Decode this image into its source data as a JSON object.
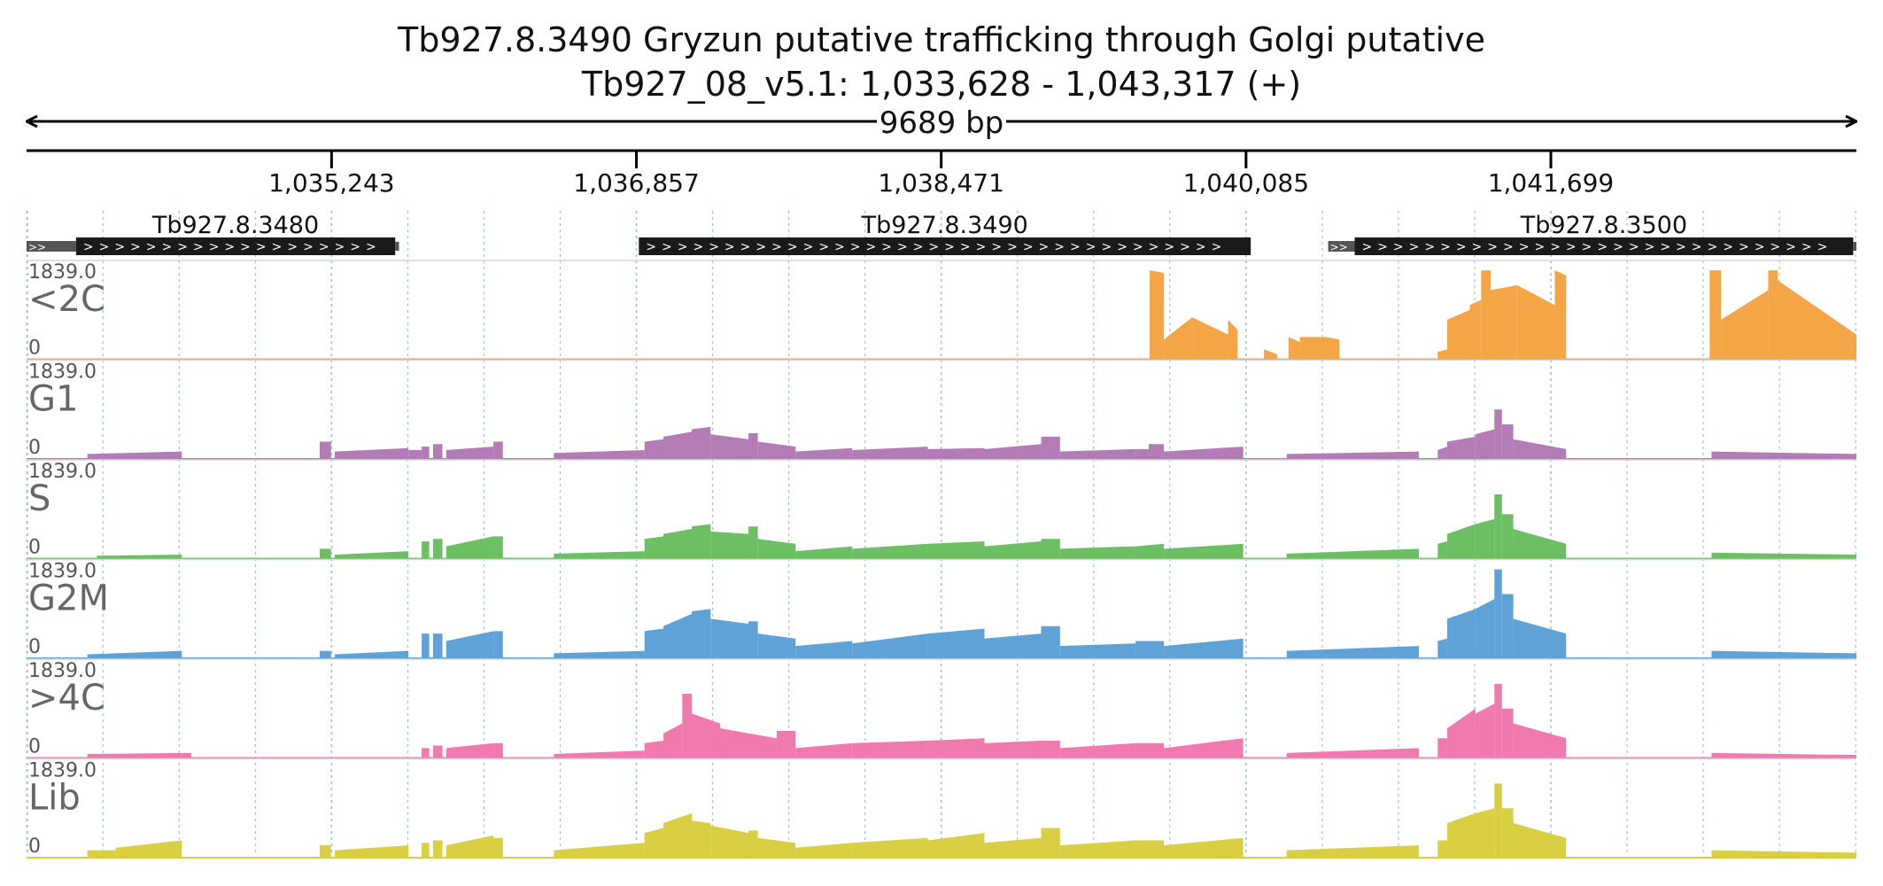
{
  "header": {
    "title": "Tb927.8.3490  Gryzun  putative trafficking through Golgi  putative",
    "locus": "Tb927_08_v5.1: 1,033,628 - 1,043,317 (+)",
    "span_label": "9689 bp"
  },
  "region": {
    "start": 1033628,
    "end": 1043317
  },
  "ruler": {
    "ticks": [
      1035243,
      1036857,
      1038471,
      1040085,
      1041699
    ],
    "tick_labels": [
      "1,035,243",
      "1,036,857",
      "1,038,471",
      "1,040,085",
      "1,041,699"
    ]
  },
  "genes": [
    {
      "name": "Tb927.8.3480",
      "start": 1033890,
      "end": 1035580,
      "utr5_start": 1033628,
      "utr3_end": 1035600,
      "strand": "+"
    },
    {
      "name": "Tb927.8.3490",
      "start": 1036870,
      "end": 1040110,
      "utr5_start": 1036870,
      "utr3_end": 1040110,
      "strand": "+"
    },
    {
      "name": "Tb927.8.3500",
      "start": 1040660,
      "end": 1043300,
      "utr5_start": 1040520,
      "utr3_end": 1043317,
      "strand": "+"
    }
  ],
  "colors": {
    "t2c": "#f4a545",
    "G1": "#b37cb5",
    "S": "#6cbf63",
    "G2M": "#5fa2d8",
    "g4c": "#f07aaf",
    "Lib": "#d9cf43",
    "gene": "#1a1a1a",
    "grid": "#9ec3e6"
  },
  "chart_data": {
    "type": "area",
    "x_unit": "bp",
    "xlim": [
      1033628,
      1043317
    ],
    "ylim": [
      0,
      1839.0
    ],
    "y_max_label": "1839.0",
    "y_min_label": "0",
    "tracks": [
      {
        "name": "<2C",
        "color": "#f4a545",
        "segments": [
          [
            1039575,
            1039650,
            1800,
            1750
          ],
          [
            1039650,
            1039800,
            400,
            850
          ],
          [
            1039800,
            1039990,
            850,
            500
          ],
          [
            1039990,
            1040040,
            800,
            600
          ],
          [
            1040180,
            1040250,
            200,
            100
          ],
          [
            1040310,
            1040370,
            450,
            350
          ],
          [
            1040370,
            1040510,
            450,
            450
          ],
          [
            1040510,
            1040580,
            450,
            400
          ],
          [
            1041100,
            1041150,
            150,
            200
          ],
          [
            1041150,
            1041270,
            800,
            1000
          ],
          [
            1041270,
            1041330,
            1100,
            1200
          ],
          [
            1041330,
            1041380,
            1800,
            1800
          ],
          [
            1041380,
            1041520,
            1400,
            1500
          ],
          [
            1041520,
            1041720,
            1500,
            1100
          ],
          [
            1041720,
            1041780,
            1800,
            1700
          ],
          [
            1042540,
            1042600,
            1800,
            1800
          ],
          [
            1042600,
            1042850,
            800,
            1400
          ],
          [
            1042850,
            1042900,
            1800,
            1800
          ],
          [
            1042900,
            1043317,
            1600,
            500
          ]
        ]
      },
      {
        "name": "G1",
        "color": "#b37cb5",
        "segments": [
          [
            1033950,
            1034450,
            100,
            150
          ],
          [
            1035180,
            1035240,
            350,
            350
          ],
          [
            1035260,
            1035650,
            150,
            220
          ],
          [
            1035650,
            1035720,
            180,
            180
          ],
          [
            1035720,
            1035760,
            250,
            250
          ],
          [
            1035780,
            1035830,
            300,
            300
          ],
          [
            1035850,
            1036100,
            180,
            250
          ],
          [
            1036100,
            1036150,
            350,
            350
          ],
          [
            1036420,
            1036900,
            120,
            180
          ],
          [
            1036900,
            1037000,
            350,
            400
          ],
          [
            1037000,
            1037150,
            450,
            550
          ],
          [
            1037150,
            1037250,
            600,
            650
          ],
          [
            1037250,
            1037450,
            500,
            400
          ],
          [
            1037450,
            1037500,
            520,
            520
          ],
          [
            1037500,
            1037700,
            350,
            250
          ],
          [
            1037700,
            1038000,
            150,
            220
          ],
          [
            1038000,
            1038400,
            180,
            250
          ],
          [
            1038400,
            1038700,
            200,
            220
          ],
          [
            1038700,
            1039000,
            200,
            300
          ],
          [
            1039000,
            1039100,
            450,
            450
          ],
          [
            1039100,
            1039500,
            150,
            200
          ],
          [
            1039500,
            1039570,
            200,
            200
          ],
          [
            1039570,
            1039650,
            300,
            300
          ],
          [
            1039650,
            1040070,
            150,
            250
          ],
          [
            1040300,
            1041000,
            100,
            150
          ],
          [
            1041100,
            1041150,
            180,
            250
          ],
          [
            1041150,
            1041300,
            350,
            450
          ],
          [
            1041300,
            1041400,
            500,
            600
          ],
          [
            1041400,
            1041440,
            1000,
            1000
          ],
          [
            1041440,
            1041500,
            700,
            700
          ],
          [
            1041500,
            1041780,
            400,
            200
          ],
          [
            1042550,
            1043317,
            150,
            100
          ]
        ]
      },
      {
        "name": "S",
        "color": "#6cbf63",
        "segments": [
          [
            1034000,
            1034450,
            60,
            80
          ],
          [
            1035180,
            1035240,
            200,
            200
          ],
          [
            1035260,
            1035650,
            80,
            150
          ],
          [
            1035720,
            1035760,
            350,
            350
          ],
          [
            1035780,
            1035830,
            400,
            400
          ],
          [
            1035850,
            1036100,
            250,
            450
          ],
          [
            1036100,
            1036150,
            450,
            450
          ],
          [
            1036420,
            1036900,
            100,
            150
          ],
          [
            1036900,
            1037000,
            400,
            450
          ],
          [
            1037000,
            1037150,
            500,
            600
          ],
          [
            1037150,
            1037250,
            650,
            700
          ],
          [
            1037250,
            1037450,
            550,
            500
          ],
          [
            1037450,
            1037500,
            650,
            650
          ],
          [
            1037500,
            1037700,
            400,
            300
          ],
          [
            1037700,
            1038000,
            150,
            250
          ],
          [
            1038000,
            1038400,
            200,
            300
          ],
          [
            1038400,
            1038700,
            300,
            350
          ],
          [
            1038700,
            1039000,
            250,
            350
          ],
          [
            1039000,
            1039100,
            400,
            400
          ],
          [
            1039100,
            1039500,
            200,
            250
          ],
          [
            1039500,
            1039650,
            250,
            300
          ],
          [
            1039650,
            1040070,
            200,
            300
          ],
          [
            1040300,
            1041000,
            100,
            200
          ],
          [
            1041100,
            1041150,
            300,
            350
          ],
          [
            1041150,
            1041300,
            500,
            700
          ],
          [
            1041300,
            1041400,
            700,
            800
          ],
          [
            1041400,
            1041440,
            1300,
            1300
          ],
          [
            1041440,
            1041500,
            900,
            900
          ],
          [
            1041500,
            1041780,
            600,
            300
          ],
          [
            1042550,
            1043317,
            120,
            80
          ]
        ]
      },
      {
        "name": "G2M",
        "color": "#5fa2d8",
        "segments": [
          [
            1033950,
            1034450,
            80,
            150
          ],
          [
            1035180,
            1035240,
            150,
            150
          ],
          [
            1035260,
            1035650,
            80,
            150
          ],
          [
            1035720,
            1035760,
            500,
            500
          ],
          [
            1035780,
            1035830,
            500,
            500
          ],
          [
            1035850,
            1036100,
            350,
            550
          ],
          [
            1036100,
            1036150,
            550,
            550
          ],
          [
            1036420,
            1036900,
            100,
            150
          ],
          [
            1036900,
            1037000,
            550,
            600
          ],
          [
            1037000,
            1037150,
            650,
            900
          ],
          [
            1037150,
            1037250,
            950,
            1000
          ],
          [
            1037250,
            1037450,
            800,
            700
          ],
          [
            1037450,
            1037500,
            750,
            750
          ],
          [
            1037500,
            1037700,
            500,
            400
          ],
          [
            1037700,
            1038000,
            250,
            350
          ],
          [
            1038000,
            1038400,
            300,
            500
          ],
          [
            1038400,
            1038700,
            500,
            600
          ],
          [
            1038700,
            1039000,
            400,
            500
          ],
          [
            1039000,
            1039100,
            650,
            650
          ],
          [
            1039100,
            1039500,
            250,
            300
          ],
          [
            1039500,
            1039650,
            350,
            350
          ],
          [
            1039650,
            1040070,
            250,
            400
          ],
          [
            1040300,
            1041000,
            150,
            250
          ],
          [
            1041100,
            1041150,
            350,
            400
          ],
          [
            1041150,
            1041300,
            800,
            1000
          ],
          [
            1041300,
            1041400,
            1000,
            1200
          ],
          [
            1041400,
            1041440,
            1800,
            1800
          ],
          [
            1041440,
            1041500,
            1300,
            1300
          ],
          [
            1041500,
            1041780,
            800,
            500
          ],
          [
            1042550,
            1043317,
            150,
            100
          ]
        ]
      },
      {
        "name": ">4C",
        "color": "#f07aaf",
        "segments": [
          [
            1033950,
            1034450,
            80,
            100
          ],
          [
            1034450,
            1034500,
            100,
            100
          ],
          [
            1035720,
            1035760,
            200,
            200
          ],
          [
            1035780,
            1035830,
            250,
            250
          ],
          [
            1035850,
            1036100,
            200,
            300
          ],
          [
            1036100,
            1036150,
            300,
            300
          ],
          [
            1036420,
            1036900,
            80,
            150
          ],
          [
            1036900,
            1037000,
            300,
            350
          ],
          [
            1037000,
            1037100,
            500,
            700
          ],
          [
            1037100,
            1037150,
            1300,
            1300
          ],
          [
            1037150,
            1037300,
            900,
            700
          ],
          [
            1037300,
            1037600,
            600,
            400
          ],
          [
            1037600,
            1037700,
            550,
            550
          ],
          [
            1037700,
            1038000,
            200,
            300
          ],
          [
            1038000,
            1038400,
            300,
            350
          ],
          [
            1038400,
            1038700,
            350,
            400
          ],
          [
            1038700,
            1039000,
            300,
            350
          ],
          [
            1039000,
            1039100,
            350,
            350
          ],
          [
            1039100,
            1039500,
            200,
            300
          ],
          [
            1039500,
            1039650,
            300,
            300
          ],
          [
            1039650,
            1040070,
            200,
            400
          ],
          [
            1040300,
            1041000,
            100,
            200
          ],
          [
            1041100,
            1041150,
            400,
            400
          ],
          [
            1041150,
            1041300,
            600,
            1000
          ],
          [
            1041300,
            1041400,
            900,
            1100
          ],
          [
            1041400,
            1041440,
            1500,
            1500
          ],
          [
            1041440,
            1041500,
            1000,
            1000
          ],
          [
            1041500,
            1041780,
            700,
            400
          ],
          [
            1042550,
            1043317,
            100,
            60
          ]
        ]
      },
      {
        "name": "Lib",
        "color": "#d9cf43",
        "segments": [
          [
            1033950,
            1034100,
            150,
            150
          ],
          [
            1034100,
            1034450,
            200,
            350
          ],
          [
            1035180,
            1035240,
            250,
            250
          ],
          [
            1035260,
            1035650,
            150,
            250
          ],
          [
            1035720,
            1035760,
            300,
            300
          ],
          [
            1035780,
            1035830,
            350,
            350
          ],
          [
            1035850,
            1036100,
            250,
            450
          ],
          [
            1036100,
            1036150,
            400,
            400
          ],
          [
            1036420,
            1036900,
            150,
            300
          ],
          [
            1036900,
            1037000,
            500,
            600
          ],
          [
            1037000,
            1037150,
            700,
            900
          ],
          [
            1037150,
            1037250,
            750,
            700
          ],
          [
            1037250,
            1037450,
            650,
            500
          ],
          [
            1037450,
            1037500,
            550,
            550
          ],
          [
            1037500,
            1037700,
            400,
            300
          ],
          [
            1037700,
            1038000,
            200,
            300
          ],
          [
            1038000,
            1038400,
            300,
            400
          ],
          [
            1038400,
            1038700,
            350,
            500
          ],
          [
            1038700,
            1039000,
            300,
            400
          ],
          [
            1039000,
            1039100,
            600,
            600
          ],
          [
            1039100,
            1039500,
            250,
            350
          ],
          [
            1039500,
            1039650,
            350,
            350
          ],
          [
            1039650,
            1040070,
            250,
            400
          ],
          [
            1040300,
            1041000,
            150,
            250
          ],
          [
            1041100,
            1041150,
            350,
            350
          ],
          [
            1041150,
            1041300,
            700,
            900
          ],
          [
            1041300,
            1041400,
            900,
            1000
          ],
          [
            1041400,
            1041440,
            1500,
            1500
          ],
          [
            1041440,
            1041500,
            1000,
            1000
          ],
          [
            1041500,
            1041780,
            700,
            400
          ],
          [
            1042550,
            1043317,
            150,
            100
          ]
        ]
      }
    ]
  }
}
